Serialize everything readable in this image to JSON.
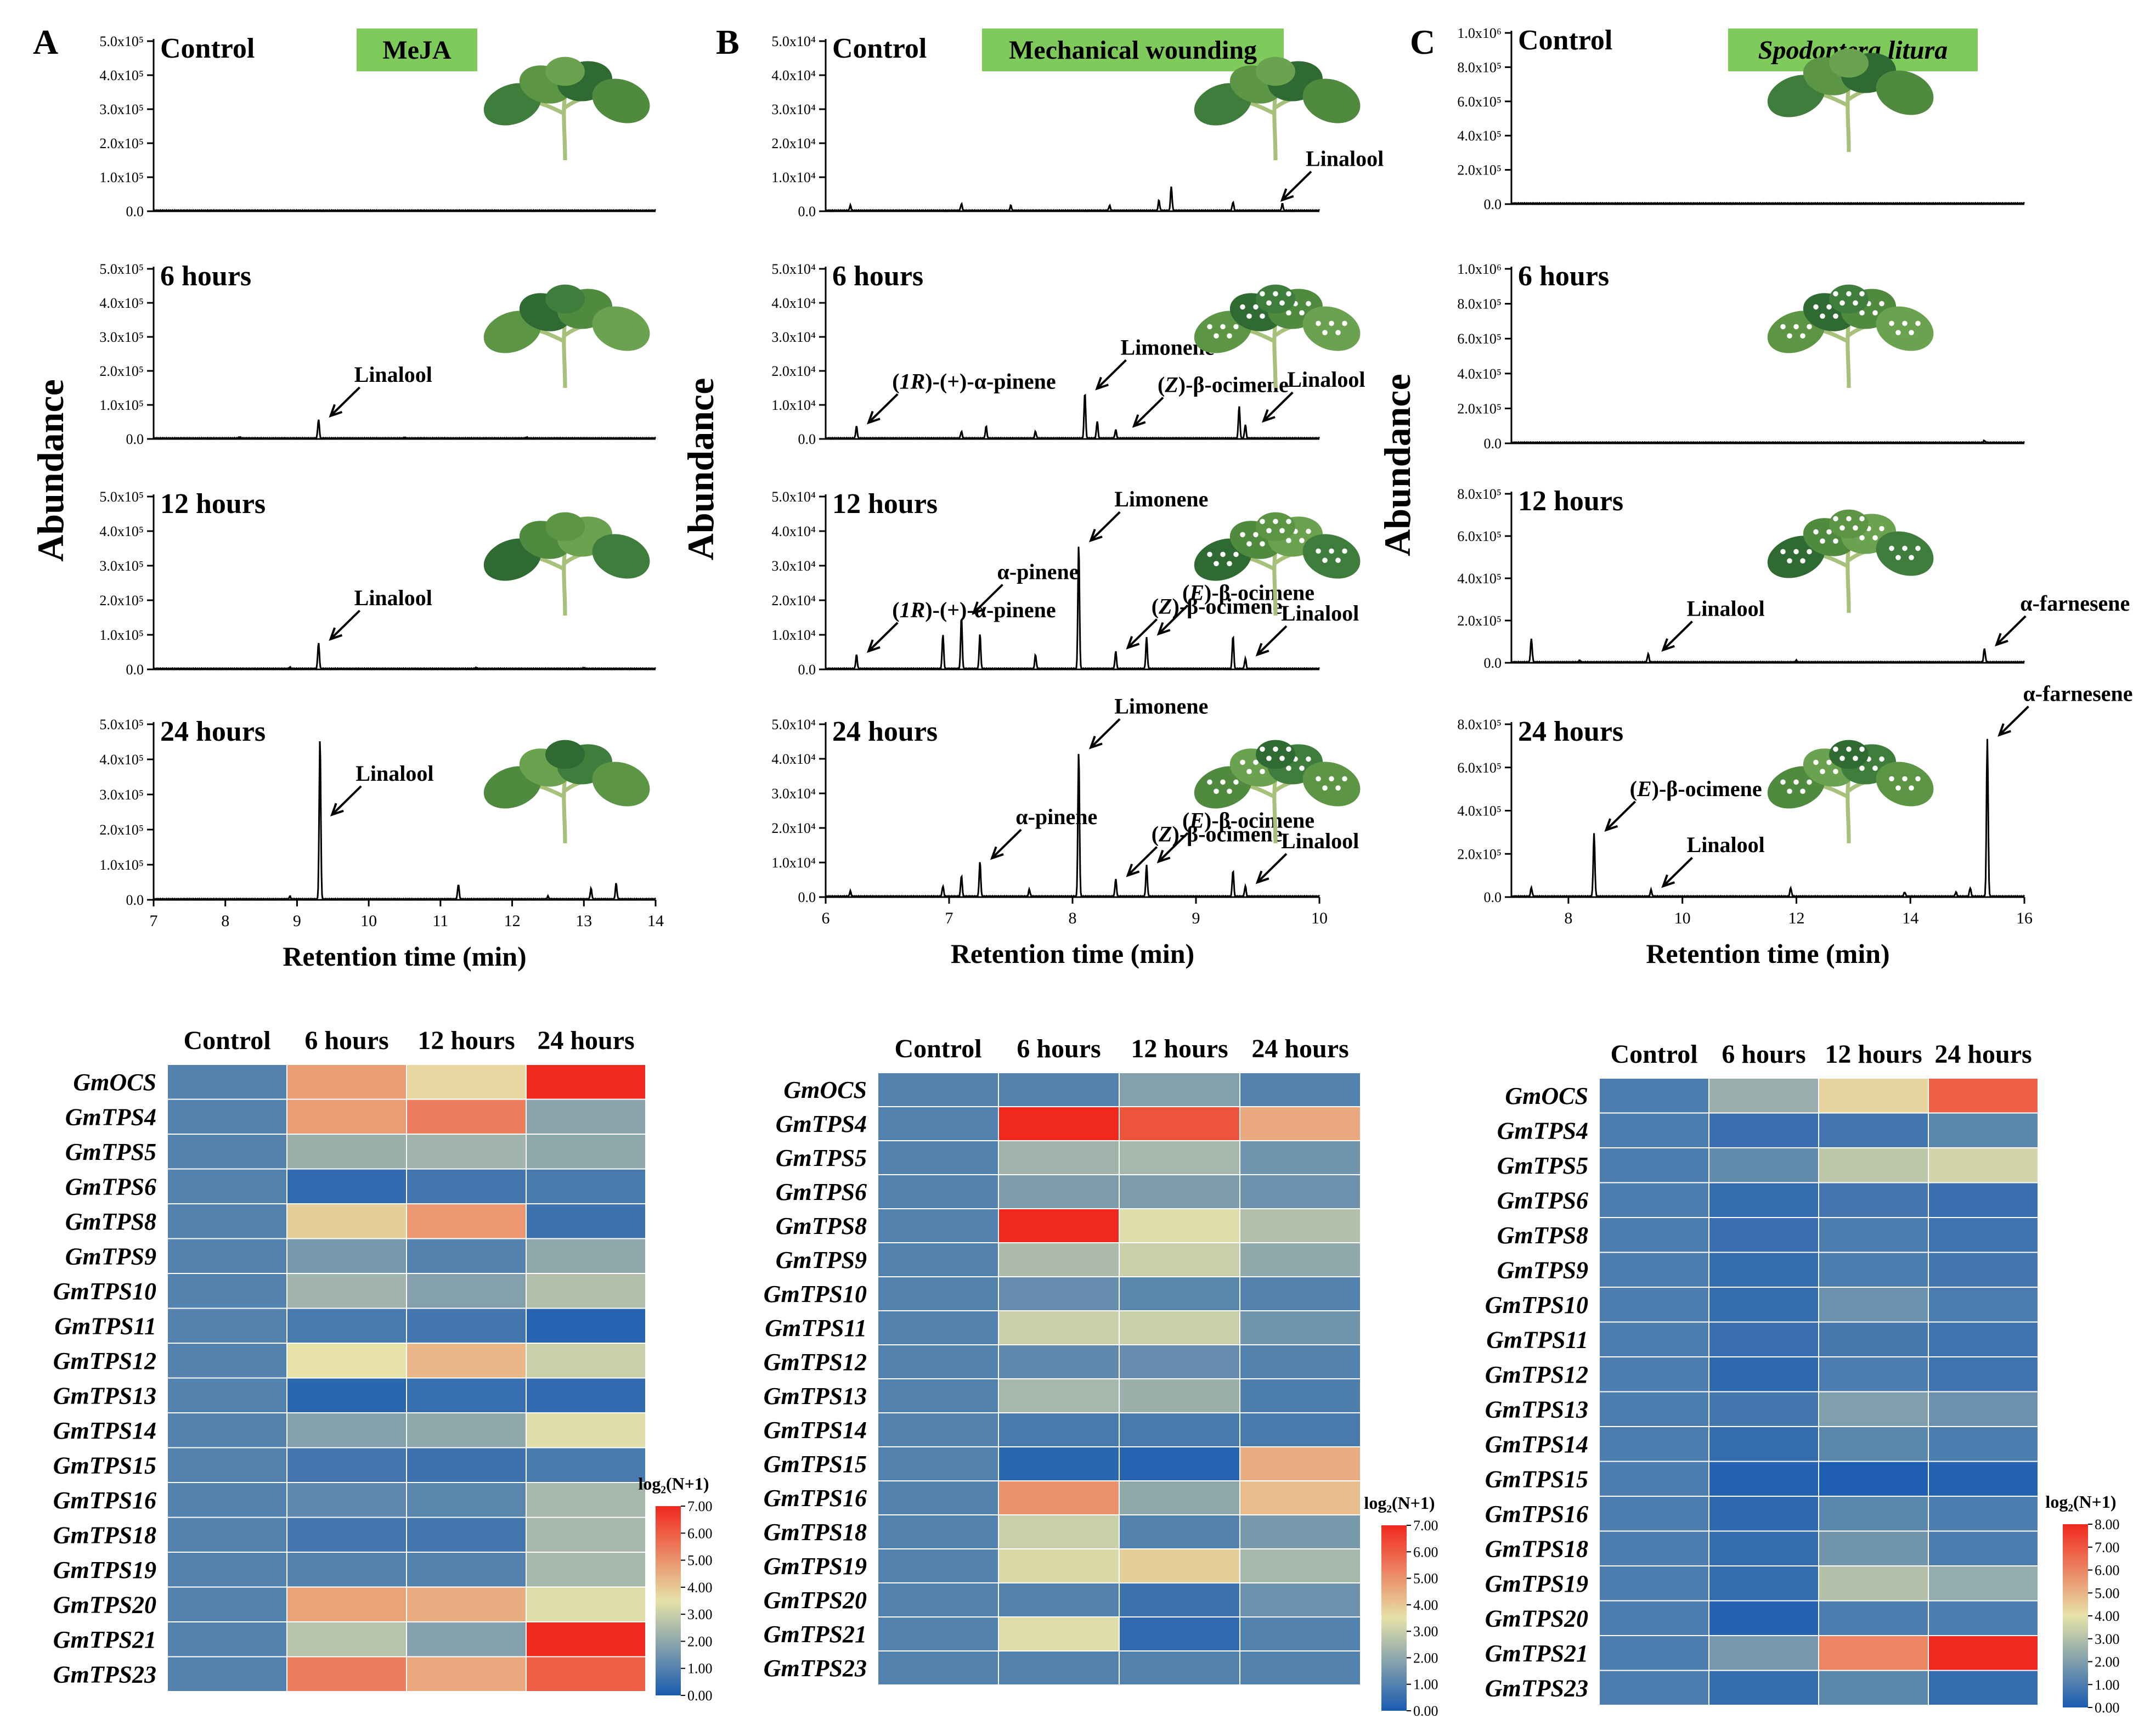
{
  "colors": {
    "low": "#1a5bb0",
    "mid": "#e6e2a8",
    "high": "#f1281e",
    "banner": "#7ecb5b",
    "trace": "#000000"
  },
  "chart_data": [
    {
      "type": "line",
      "panel": "A",
      "treatment": "MeJA",
      "treatment_italic": false,
      "ylabel": "Abundance",
      "xlabel": "Retention time (min)",
      "xlim": [
        7,
        14
      ],
      "xticks": [
        "7",
        "8",
        "9",
        "10",
        "11",
        "12",
        "13",
        "14"
      ],
      "yticks": [
        [
          "0.0",
          "1.0x10⁵",
          "2.0x10⁵",
          "3.0x10⁵",
          "4.0x10⁵",
          "5.0x10⁵"
        ],
        [
          "0.0",
          "1.0x10⁵",
          "2.0x10⁵",
          "3.0x10⁵",
          "4.0x10⁵",
          "5.0x10⁵"
        ],
        [
          "0.0",
          "1.0x10⁵",
          "2.0x10⁵",
          "3.0x10⁵",
          "4.0x10⁵",
          "5.0x10⁵"
        ],
        [
          "0.0",
          "1.0x10⁵",
          "2.0x10⁵",
          "3.0x10⁵",
          "4.0x10⁵",
          "5.0x10⁵"
        ]
      ],
      "ymax": [
        500000,
        500000,
        500000,
        500000
      ],
      "series": [
        {
          "name": "Control",
          "peaks": [],
          "annotations": []
        },
        {
          "name": "6 hours",
          "peaks": [
            [
              9.3,
              55000
            ],
            [
              8.2,
              4000
            ],
            [
              10.5,
              3000
            ],
            [
              12.2,
              3000
            ]
          ],
          "annotations": [
            {
              "text": "Linalool",
              "x": 9.3,
              "y": 55000
            }
          ]
        },
        {
          "name": "12 hours",
          "peaks": [
            [
              9.3,
              75000
            ],
            [
              8.9,
              4000
            ],
            [
              11.5,
              3000
            ],
            [
              13.0,
              3000
            ]
          ],
          "annotations": [
            {
              "text": "Linalool",
              "x": 9.3,
              "y": 75000
            }
          ]
        },
        {
          "name": "24 hours",
          "peaks": [
            [
              9.32,
              460000
            ],
            [
              11.25,
              42000
            ],
            [
              13.1,
              30000
            ],
            [
              13.45,
              45000
            ],
            [
              8.9,
              8000
            ],
            [
              12.5,
              8000
            ]
          ],
          "annotations": [
            {
              "text": "Linalool",
              "x": 9.32,
              "y": 230000
            }
          ]
        }
      ]
    },
    {
      "type": "line",
      "panel": "B",
      "treatment": "Mechanical wounding",
      "treatment_italic": false,
      "ylabel": "Abundance",
      "xlabel": "Retention time (min)",
      "xlim": [
        6,
        10
      ],
      "xticks": [
        "6",
        "7",
        "8",
        "9",
        "10"
      ],
      "yticks": [
        [
          "0.0",
          "1.0x10⁴",
          "2.0x10⁴",
          "3.0x10⁴",
          "4.0x10⁴",
          "5.0x10⁴"
        ],
        [
          "0.0",
          "1.0x10⁴",
          "2.0x10⁴",
          "3.0x10⁴",
          "4.0x10⁴",
          "5.0x10⁴"
        ],
        [
          "0.0",
          "1.0x10⁴",
          "2.0x10⁴",
          "3.0x10⁴",
          "4.0x10⁴",
          "5.0x10⁴"
        ],
        [
          "0.0",
          "1.0x10⁴",
          "2.0x10⁴",
          "3.0x10⁴",
          "4.0x10⁴",
          "5.0x10⁴"
        ]
      ],
      "ymax": [
        50000,
        50000,
        50000,
        50000
      ],
      "series": [
        {
          "name": "Control",
          "peaks": [
            [
              6.2,
              1500
            ],
            [
              7.1,
              2000
            ],
            [
              7.5,
              1500
            ],
            [
              8.3,
              1500
            ],
            [
              8.7,
              3000
            ],
            [
              8.8,
              7000
            ],
            [
              9.3,
              2500
            ],
            [
              9.7,
              2000
            ]
          ],
          "annotations": [
            {
              "text": "Linalool",
              "x": 9.6,
              "y": 2000
            }
          ]
        },
        {
          "name": "6 hours",
          "peaks": [
            [
              6.25,
              3500
            ],
            [
              7.1,
              2000
            ],
            [
              7.3,
              3500
            ],
            [
              7.7,
              2000
            ],
            [
              8.1,
              13500
            ],
            [
              8.2,
              5000
            ],
            [
              8.35,
              2500
            ],
            [
              9.35,
              9500
            ],
            [
              9.4,
              4000
            ]
          ],
          "annotations": [
            {
              "text": "(1R)-(+)-α-pinene",
              "x": 6.25,
              "y": 3500
            },
            {
              "text": "Limonene",
              "x": 8.1,
              "y": 13500
            },
            {
              "text": "(Z)-β-ocimene",
              "x": 8.4,
              "y": 2500
            },
            {
              "text": "Linalool",
              "x": 9.45,
              "y": 4000
            }
          ]
        },
        {
          "name": "12 hours",
          "peaks": [
            [
              6.25,
              4000
            ],
            [
              6.95,
              10000
            ],
            [
              7.1,
              15000
            ],
            [
              7.25,
              10000
            ],
            [
              7.7,
              4000
            ],
            [
              8.05,
              36000
            ],
            [
              8.35,
              5000
            ],
            [
              8.6,
              9000
            ],
            [
              9.3,
              9500
            ],
            [
              9.4,
              3000
            ]
          ],
          "annotations": [
            {
              "text": "(1R)-(+)-α-pinene",
              "x": 6.25,
              "y": 4000
            },
            {
              "text": "α-pinene",
              "x": 7.1,
              "y": 15000
            },
            {
              "text": "Limonene",
              "x": 8.05,
              "y": 36000
            },
            {
              "text": "(Z)-β-ocimene",
              "x": 8.35,
              "y": 5000
            },
            {
              "text": "(E)-β-ocimene",
              "x": 8.6,
              "y": 9000
            },
            {
              "text": "Linalool",
              "x": 9.4,
              "y": 3000
            }
          ]
        },
        {
          "name": "24 hours",
          "peaks": [
            [
              6.2,
              1500
            ],
            [
              6.95,
              3000
            ],
            [
              7.1,
              6000
            ],
            [
              7.25,
              10000
            ],
            [
              7.65,
              2000
            ],
            [
              8.05,
              42000
            ],
            [
              8.35,
              5000
            ],
            [
              8.6,
              9000
            ],
            [
              9.3,
              7500
            ],
            [
              9.4,
              3000
            ]
          ],
          "annotations": [
            {
              "text": "α-pinene",
              "x": 7.25,
              "y": 10000
            },
            {
              "text": "Limonene",
              "x": 8.05,
              "y": 42000
            },
            {
              "text": "(Z)-β-ocimene",
              "x": 8.35,
              "y": 5000
            },
            {
              "text": "(E)-β-ocimene",
              "x": 8.6,
              "y": 9000
            },
            {
              "text": "Linalool",
              "x": 9.4,
              "y": 3000
            }
          ]
        }
      ]
    },
    {
      "type": "line",
      "panel": "C",
      "treatment": "Spodoptera litura",
      "treatment_italic": true,
      "ylabel": "Abundance",
      "xlabel": "Retention time (min)",
      "xlim": [
        7,
        16
      ],
      "xticks": [
        "8",
        "10",
        "12",
        "14",
        "16"
      ],
      "xtick_values": [
        8,
        10,
        12,
        14,
        16
      ],
      "yticks": [
        [
          "0.0",
          "2.0x10⁵",
          "4.0x10⁵",
          "6.0x10⁵",
          "8.0x10⁵",
          "1.0x10⁶"
        ],
        [
          "0.0",
          "2.0x10⁵",
          "4.0x10⁵",
          "6.0x10⁵",
          "8.0x10⁵",
          "1.0x10⁶"
        ],
        [
          "0.0",
          "2.0x10⁵",
          "4.0x10⁵",
          "6.0x10⁵",
          "8.0x10⁵"
        ],
        [
          "0.0",
          "2.0x10⁵",
          "4.0x10⁵",
          "6.0x10⁵",
          "8.0x10⁵"
        ]
      ],
      "ymax": [
        1000000,
        1000000,
        800000,
        800000
      ],
      "series": [
        {
          "name": "Control",
          "peaks": [],
          "annotations": []
        },
        {
          "name": "6 hours",
          "peaks": [
            [
              15.3,
              12000
            ]
          ],
          "annotations": []
        },
        {
          "name": "12 hours",
          "peaks": [
            [
              7.35,
              110000
            ],
            [
              9.4,
              40000
            ],
            [
              15.3,
              65000
            ],
            [
              8.2,
              8000
            ],
            [
              12.0,
              8000
            ]
          ],
          "annotations": [
            {
              "text": "Linalool",
              "x": 9.45,
              "y": 40000
            },
            {
              "text": "α-farnesene",
              "x": 15.3,
              "y": 65000
            }
          ]
        },
        {
          "name": "24 hours",
          "peaks": [
            [
              7.35,
              40000
            ],
            [
              8.45,
              290000
            ],
            [
              9.45,
              30000
            ],
            [
              11.9,
              40000
            ],
            [
              13.9,
              20000
            ],
            [
              14.8,
              20000
            ],
            [
              15.05,
              40000
            ],
            [
              15.35,
              730000
            ]
          ],
          "annotations": [
            {
              "text": "(E)-β-ocimene",
              "x": 8.45,
              "y": 290000
            },
            {
              "text": "Linalool",
              "x": 9.45,
              "y": 30000
            },
            {
              "text": "α-farnesene",
              "x": 15.35,
              "y": 730000
            }
          ]
        }
      ]
    },
    {
      "type": "heatmap",
      "panel": "A",
      "columns": [
        "Control",
        "6 hours",
        "12 hours",
        "24 hours"
      ],
      "rows": [
        "GmOCS",
        "GmTPS4",
        "GmTPS5",
        "GmTPS6",
        "GmTPS8",
        "GmTPS9",
        "GmTPS10",
        "GmTPS11",
        "GmTPS12",
        "GmTPS13",
        "GmTPS14",
        "GmTPS15",
        "GmTPS16",
        "GmTPS18",
        "GmTPS19",
        "GmTPS20",
        "GmTPS21",
        "GmTPS23"
      ],
      "values": [
        [
          1.0,
          4.8,
          3.7,
          7.0
        ],
        [
          1.0,
          4.8,
          5.4,
          1.9
        ],
        [
          1.0,
          2.2,
          2.3,
          2.0
        ],
        [
          1.0,
          0.4,
          0.7,
          0.8
        ],
        [
          1.0,
          3.9,
          4.9,
          0.6
        ],
        [
          1.0,
          1.6,
          1.0,
          2.0
        ],
        [
          1.0,
          2.3,
          1.8,
          2.6
        ],
        [
          1.0,
          0.8,
          0.7,
          0.2
        ],
        [
          1.0,
          3.5,
          4.3,
          3.0
        ],
        [
          1.0,
          0.3,
          0.5,
          0.4
        ],
        [
          1.0,
          1.8,
          2.0,
          3.4
        ],
        [
          1.0,
          0.7,
          0.6,
          0.8
        ],
        [
          1.0,
          1.2,
          1.1,
          2.4
        ],
        [
          1.0,
          0.7,
          0.7,
          2.4
        ],
        [
          1.0,
          1.0,
          1.0,
          2.4
        ],
        [
          1.0,
          4.7,
          4.5,
          3.4
        ],
        [
          1.0,
          2.7,
          1.8,
          7.0
        ],
        [
          1.0,
          5.4,
          4.6,
          6.0
        ]
      ],
      "legend_title": "log₂(N+1)",
      "legend_range": [
        0,
        7
      ],
      "legend_ticks": [
        "0.00",
        "1.00",
        "2.00",
        "3.00",
        "4.00",
        "5.00",
        "6.00",
        "7.00"
      ]
    },
    {
      "type": "heatmap",
      "panel": "B",
      "columns": [
        "Control",
        "6 hours",
        "12 hours",
        "24 hours"
      ],
      "rows": [
        "GmOCS",
        "GmTPS4",
        "GmTPS5",
        "GmTPS6",
        "GmTPS8",
        "GmTPS9",
        "GmTPS10",
        "GmTPS11",
        "GmTPS12",
        "GmTPS13",
        "GmTPS14",
        "GmTPS15",
        "GmTPS16",
        "GmTPS18",
        "GmTPS19",
        "GmTPS20",
        "GmTPS21",
        "GmTPS23"
      ],
      "values": [
        [
          1.0,
          1.0,
          1.8,
          1.0
        ],
        [
          1.0,
          7.0,
          6.2,
          4.6
        ],
        [
          1.0,
          2.3,
          2.4,
          1.5
        ],
        [
          1.0,
          1.7,
          1.7,
          1.4
        ],
        [
          1.0,
          7.0,
          3.4,
          2.6
        ],
        [
          1.0,
          2.5,
          3.0,
          2.0
        ],
        [
          1.0,
          1.3,
          1.1,
          1.0
        ],
        [
          1.0,
          3.0,
          3.0,
          1.5
        ],
        [
          1.0,
          1.2,
          1.3,
          1.0
        ],
        [
          1.0,
          2.4,
          2.2,
          0.9
        ],
        [
          1.0,
          0.8,
          0.8,
          0.8
        ],
        [
          1.0,
          0.3,
          0.2,
          4.5
        ],
        [
          1.0,
          5.0,
          2.0,
          4.2
        ],
        [
          1.0,
          3.0,
          1.0,
          1.6
        ],
        [
          1.0,
          3.3,
          3.9,
          2.4
        ],
        [
          1.0,
          1.0,
          0.6,
          1.4
        ],
        [
          1.0,
          3.4,
          0.4,
          1.0
        ],
        [
          1.0,
          1.0,
          1.0,
          1.0
        ]
      ],
      "legend_title": "log₂(N+1)",
      "legend_range": [
        0,
        7
      ],
      "legend_ticks": [
        "0.00",
        "1.00",
        "2.00",
        "3.00",
        "4.00",
        "5.00",
        "6.00",
        "7.00"
      ]
    },
    {
      "type": "heatmap",
      "panel": "C",
      "columns": [
        "Control",
        "6 hours",
        "12 hours",
        "24 hours"
      ],
      "rows": [
        "GmOCS",
        "GmTPS4",
        "GmTPS5",
        "GmTPS6",
        "GmTPS8",
        "GmTPS9",
        "GmTPS10",
        "GmTPS11",
        "GmTPS12",
        "GmTPS13",
        "GmTPS14",
        "GmTPS15",
        "GmTPS16",
        "GmTPS18",
        "GmTPS19",
        "GmTPS20",
        "GmTPS21",
        "GmTPS23"
      ],
      "values": [
        [
          1.0,
          2.5,
          4.3,
          6.8
        ],
        [
          1.0,
          0.6,
          0.8,
          1.3
        ],
        [
          1.0,
          1.4,
          3.2,
          3.6
        ],
        [
          1.0,
          0.5,
          0.8,
          0.6
        ],
        [
          1.0,
          0.6,
          1.0,
          0.7
        ],
        [
          1.0,
          0.5,
          1.0,
          0.8
        ],
        [
          1.0,
          0.5,
          1.6,
          1.0
        ],
        [
          1.0,
          0.6,
          0.9,
          0.7
        ],
        [
          1.0,
          0.4,
          1.0,
          0.7
        ],
        [
          1.0,
          0.8,
          2.0,
          1.6
        ],
        [
          1.0,
          0.5,
          1.3,
          1.0
        ],
        [
          1.0,
          0.2,
          0.1,
          0.2
        ],
        [
          1.0,
          0.4,
          1.3,
          1.0
        ],
        [
          1.0,
          0.5,
          1.7,
          1.0
        ],
        [
          1.0,
          0.5,
          3.0,
          2.4
        ],
        [
          1.0,
          0.2,
          1.0,
          1.0
        ],
        [
          1.0,
          1.8,
          6.0,
          8.0
        ],
        [
          1.0,
          0.5,
          1.3,
          0.5
        ]
      ],
      "legend_title": "log₂(N+1)",
      "legend_range": [
        0,
        8
      ],
      "legend_ticks": [
        "0.00",
        "1.00",
        "2.00",
        "3.00",
        "4.00",
        "5.00",
        "6.00",
        "7.00",
        "8.00"
      ]
    }
  ]
}
